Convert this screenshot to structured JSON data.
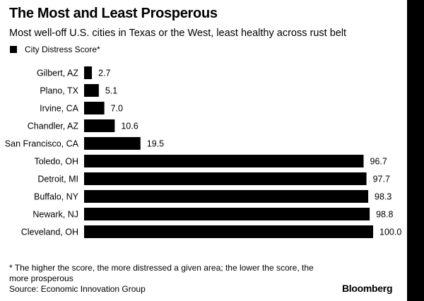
{
  "header": {
    "title": "The Most and Least Prosperous",
    "subtitle": "Most well-off U.S. cities in Texas or the West, least healthy across rust belt"
  },
  "legend": {
    "label": "City Distress Score*",
    "color": "#000000"
  },
  "footer": {
    "footnote": "* The higher the score, the more distressed a given area; the lower the score, the more prosperous",
    "source": "Source: Economic Innovation Group",
    "brand": "Bloomberg"
  },
  "chart_data": {
    "type": "bar",
    "orientation": "horizontal",
    "title": "The Most and Least Prosperous",
    "subtitle": "Most well-off U.S. cities in Texas or the West, least healthy across rust belt",
    "xlabel": "",
    "ylabel": "",
    "xlim": [
      0,
      100
    ],
    "grid": false,
    "legend_position": "top-left",
    "categories": [
      "Gilbert, AZ",
      "Plano, TX",
      "Irvine, CA",
      "Chandler, AZ",
      "San Francisco, CA",
      "Toledo, OH",
      "Detroit, MI",
      "Buffalo, NY",
      "Newark, NJ",
      "Cleveland, OH"
    ],
    "series": [
      {
        "name": "City Distress Score*",
        "color": "#000000",
        "values": [
          2.7,
          5.1,
          7.0,
          10.6,
          19.5,
          96.7,
          97.7,
          98.3,
          98.8,
          100.0
        ],
        "labels": [
          "2.7",
          "5.1",
          "7.0",
          "10.6",
          "19.5",
          "96.7",
          "97.7",
          "98.3",
          "98.8",
          "100.0"
        ]
      }
    ]
  }
}
